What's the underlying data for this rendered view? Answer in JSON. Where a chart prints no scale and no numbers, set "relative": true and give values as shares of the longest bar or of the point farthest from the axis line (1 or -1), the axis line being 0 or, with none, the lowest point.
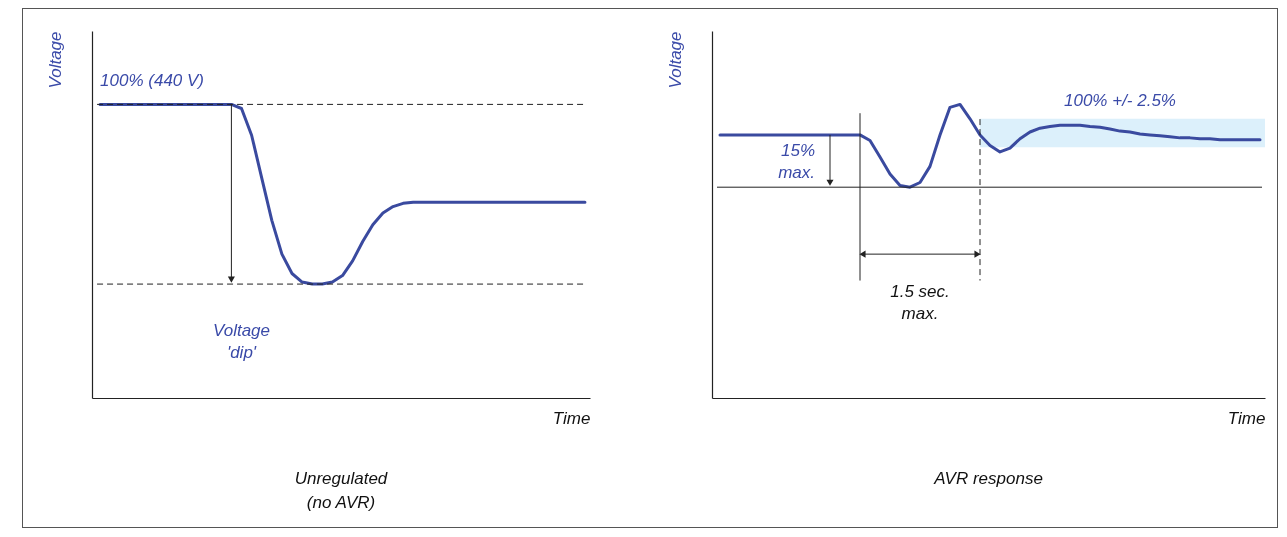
{
  "chart_data": [
    {
      "type": "line",
      "relative": true,
      "title": "Unregulated (no AVR)",
      "xlabel": "Time",
      "ylabel": "Voltage",
      "categories": [
        null,
        null,
        null,
        null,
        null,
        null,
        null,
        null,
        null,
        null,
        null,
        null,
        null,
        null,
        null,
        null,
        null,
        null,
        null,
        null,
        null,
        null,
        null,
        null,
        null,
        null,
        null,
        null,
        null,
        null,
        null,
        null,
        null,
        null,
        null,
        null,
        null,
        null,
        null,
        null,
        null,
        null,
        null,
        null,
        null,
        null,
        null,
        null,
        null
      ],
      "series": [
        {
          "color": "#3a4a9f",
          "values": [
            1,
            1,
            1,
            1,
            1,
            1,
            1,
            1,
            1,
            1,
            1,
            1,
            1,
            1,
            0.986,
            0.895,
            0.75,
            0.605,
            0.49,
            0.424,
            0.395,
            0.388,
            0.388,
            0.395,
            0.417,
            0.467,
            0.533,
            0.59,
            0.63,
            0.652,
            0.663,
            0.667,
            0.667,
            0.667,
            0.667,
            0.667,
            0.667,
            0.667,
            0.667,
            0.667,
            0.667,
            0.667,
            0.667,
            0.667,
            0.667,
            0.667,
            0.667,
            0.667,
            0.667
          ]
        }
      ],
      "ref_lines": [
        {
          "axis": "y",
          "value": 1,
          "label": "100% (440 V)",
          "line_style": "dashed"
        },
        {
          "axis": "y",
          "value": 0.388,
          "label": "Voltage 'dip'",
          "line_style": "dashed"
        }
      ]
    },
    {
      "type": "line",
      "relative": true,
      "title": "AVR response",
      "xlabel": "Time",
      "ylabel": "Voltage",
      "categories": [
        null,
        null,
        null,
        null,
        null,
        null,
        null,
        null,
        null,
        null,
        null,
        null,
        null,
        null,
        null,
        null,
        null,
        null,
        null,
        null,
        null,
        null,
        null,
        null,
        null,
        null,
        null,
        null,
        null,
        null,
        null,
        null,
        null,
        null,
        null,
        null,
        null,
        null,
        null,
        null,
        null,
        null,
        null,
        null,
        null,
        null,
        null,
        null,
        null,
        null,
        null,
        null,
        null,
        null,
        null
      ],
      "series": [
        {
          "color": "#3a4a9f",
          "values": [
            0.896,
            0.896,
            0.896,
            0.896,
            0.896,
            0.896,
            0.896,
            0.896,
            0.896,
            0.896,
            0.896,
            0.896,
            0.896,
            0.896,
            0.896,
            0.877,
            0.821,
            0.763,
            0.724,
            0.718,
            0.734,
            0.789,
            0.896,
            0.99,
            1,
            0.951,
            0.896,
            0.86,
            0.838,
            0.851,
            0.883,
            0.906,
            0.919,
            0.925,
            0.929,
            0.929,
            0.929,
            0.925,
            0.922,
            0.916,
            0.909,
            0.906,
            0.899,
            0.896,
            0.893,
            0.89,
            0.886,
            0.886,
            0.883,
            0.883,
            0.88,
            0.88,
            0.88,
            0.88,
            0.88
          ]
        }
      ],
      "ref_lines": [
        {
          "axis": "y",
          "value": 0.718,
          "line_style": "solid"
        }
      ],
      "bands": [
        {
          "axis": "y",
          "from": 0.854,
          "to": 0.951,
          "label": "100% +/- 2.5%",
          "color": "#dcf0fb"
        }
      ],
      "annotations": [
        "15% max.",
        "1.5 sec. max."
      ]
    }
  ]
}
